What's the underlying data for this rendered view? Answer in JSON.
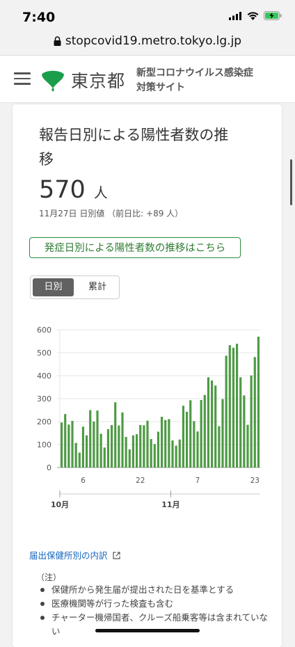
{
  "status": {
    "time": "7:40"
  },
  "browser": {
    "url": "stopcovid19.metro.tokyo.lg.jp"
  },
  "header": {
    "logo_text": "東京都",
    "site_title_line1": "新型コロナウイルス感染症",
    "site_title_line2": "対策サイト"
  },
  "card": {
    "title": "報告日別による陽性者数の推移",
    "count": "570",
    "unit": "人",
    "date_line": "11月27日 日別値 （前日比: +89 人）",
    "onset_link": "発症日別による陽性者数の推移はこちら",
    "toggle": {
      "daily": "日別",
      "cumulative": "累計",
      "selected": "daily"
    },
    "breakdown_link": "届出保健所別の内訳",
    "note_head": "（注）",
    "notes": [
      "保健所から発生届が提出された日を基準とする",
      "医療機関等が行った検査も含む",
      "チャーター機帰国者、クルーズ船乗客等は含まれていない"
    ]
  },
  "colors": {
    "bar": "#4e9a45",
    "accent": "#2e7d32",
    "link": "#1565c0"
  },
  "chart_data": {
    "type": "bar",
    "ylim": [
      0,
      600
    ],
    "yticks": [
      "0",
      "100",
      "200",
      "300",
      "400",
      "500",
      "600"
    ],
    "xtick_labels": [
      "6",
      "22",
      "7",
      "23"
    ],
    "month_labels": [
      "10月",
      "11月"
    ],
    "series": [
      {
        "values": [
          196,
          233,
          187,
          203,
          107,
          65,
          178,
          140,
          250,
          200,
          248,
          147,
          87,
          167,
          185,
          284,
          183,
          240,
          133,
          79,
          140,
          145,
          185,
          184,
          204,
          124,
          102,
          156,
          221,
          207,
          211,
          118,
          95,
          122,
          269,
          243,
          293,
          202,
          157,
          294,
          316,
          393,
          379,
          357,
          180,
          298,
          487,
          533,
          522,
          539,
          393,
          314,
          186,
          401,
          481,
          570
        ]
      }
    ]
  }
}
